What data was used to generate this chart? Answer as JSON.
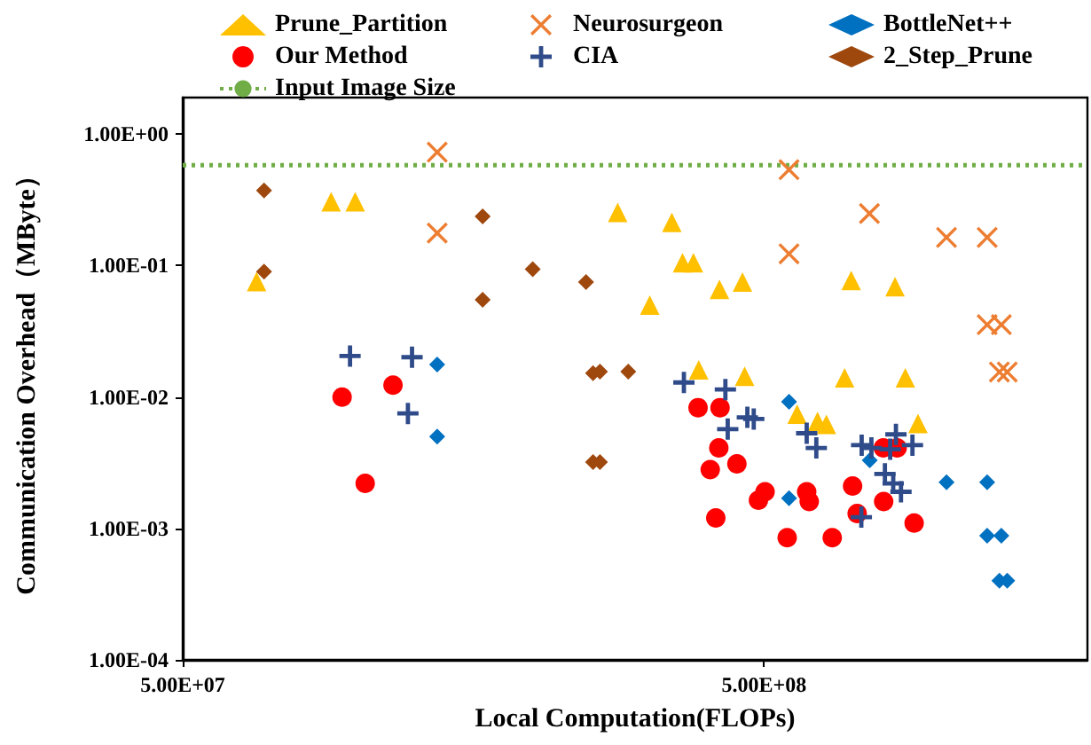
{
  "chart_data": {
    "type": "scatter",
    "xlabel": "Local Computation(FLOPs)",
    "ylabel": "Communication Overhead（MByte）",
    "log": "xy",
    "grid": false,
    "legend": "top",
    "xlim": [
      50000000.0,
      1800000000.0
    ],
    "xticks": [
      {
        "value": 50000000.0,
        "label": "5.00E+07"
      },
      {
        "value": 500000000.0,
        "label": "5.00E+08"
      }
    ],
    "ylim": [
      0.0001,
      1.9
    ],
    "yticks": [
      {
        "value": 0.0001,
        "label": "1.00E-04"
      },
      {
        "value": 0.001,
        "label": "1.00E-03"
      },
      {
        "value": 0.01,
        "label": "1.00E-02"
      },
      {
        "value": 0.1,
        "label": "1.00E-01"
      },
      {
        "value": 1,
        "label": "1.00E+00"
      }
    ],
    "ref_lines": [
      {
        "axis": "y",
        "value": 0.58,
        "label": "Input Image Size",
        "color": "#70ad47",
        "line_style": "dotted"
      }
    ],
    "series": [
      {
        "name": "Prune_Partition",
        "color": "#ffc000",
        "marker": "triangle",
        "x": [
          67000000.0,
          90000000.0,
          99000000.0,
          280000000.0,
          347000000.0,
          362000000.0,
          378000000.0,
          318000000.0,
          419000000.0,
          459000000.0,
          706000000.0,
          840000000.0,
          386000000.0,
          463000000.0,
          688000000.0,
          875000000.0,
          570000000.0,
          618000000.0,
          640000000.0,
          920000000.0
        ],
        "values": [
          0.0755,
          0.306,
          0.306,
          0.254,
          0.213,
          0.105,
          0.105,
          0.05,
          0.066,
          0.075,
          0.077,
          0.069,
          0.0161,
          0.0144,
          0.014,
          0.014,
          0.0074,
          0.0065,
          0.0062,
          0.0063
        ]
      },
      {
        "name": "Neurosurgeon",
        "color": "#ed7d31",
        "marker": "x",
        "x": [
          137000000.0,
          137000000.0,
          552000000.0,
          552000000.0,
          759000000.0,
          1030000000.0,
          1210000000.0,
          1210000000.0,
          1280000000.0,
          1270000000.0,
          1310000000.0
        ],
        "values": [
          0.73,
          0.177,
          0.537,
          0.123,
          0.249,
          0.164,
          0.164,
          0.0355,
          0.0355,
          0.0155,
          0.0155
        ]
      },
      {
        "name": "BottleNet++",
        "color": "#0070c0",
        "marker": "diamond",
        "x": [
          137000000.0,
          137000000.0,
          552000000.0,
          552000000.0,
          760000000.0,
          1030000000.0,
          1210000000.0,
          1210000000.0,
          1280000000.0,
          1270000000.0,
          1310000000.0
        ],
        "values": [
          0.0177,
          0.005,
          0.0092,
          0.0017,
          0.0033,
          0.00225,
          0.00225,
          0.00088,
          0.00088,
          0.0004,
          0.0004
        ]
      },
      {
        "name": "Our Method",
        "color": "#ff0000",
        "marker": "circle",
        "x": [
          94000000.0,
          115000000.0,
          103000000.0,
          385000000.0,
          420000000.0,
          418000000.0,
          404000000.0,
          449000000.0,
          413000000.0,
          489000000.0,
          502000000.0,
          548000000.0,
          592000000.0,
          598000000.0,
          655000000.0,
          710000000.0,
          723000000.0,
          802000000.0,
          847000000.0,
          803000000.0,
          906000000.0
        ],
        "values": [
          0.01,
          0.0123,
          0.0022,
          0.0083,
          0.0083,
          0.0041,
          0.0028,
          0.0031,
          0.0012,
          0.00164,
          0.0019,
          0.00085,
          0.0019,
          0.0016,
          0.00085,
          0.0021,
          0.0013,
          0.0041,
          0.0041,
          0.0016,
          0.0011
        ]
      },
      {
        "name": "CIA",
        "color": "#2f4b8a",
        "marker": "cross",
        "x": [
          97000000.0,
          124000000.0,
          122000000.0,
          364000000.0,
          429000000.0,
          433000000.0,
          468000000.0,
          480000000.0,
          592000000.0,
          615000000.0,
          736000000.0,
          765000000.0,
          843000000.0,
          824000000.0,
          900000000.0,
          807000000.0,
          834000000.0,
          860000000.0,
          735000000.0
        ],
        "values": [
          0.0205,
          0.0201,
          0.0075,
          0.0129,
          0.0114,
          0.0057,
          0.007,
          0.0068,
          0.0053,
          0.0041,
          0.0043,
          0.0041,
          0.0052,
          0.004,
          0.0043,
          0.0026,
          0.0022,
          0.0019,
          0.00122
        ]
      },
      {
        "name": "2_Step_Prune",
        "color": "#9e480e",
        "marker": "diamond",
        "x": [
          69000000.0,
          69000000.0,
          164000000.0,
          164000000.0,
          200000000.0,
          247000000.0,
          254000000.0,
          261000000.0,
          292000000.0,
          254000000.0,
          261000000.0
        ],
        "values": [
          0.373,
          0.09,
          0.237,
          0.055,
          0.094,
          0.075,
          0.0152,
          0.0156,
          0.0156,
          0.0032,
          0.0032
        ]
      }
    ]
  }
}
